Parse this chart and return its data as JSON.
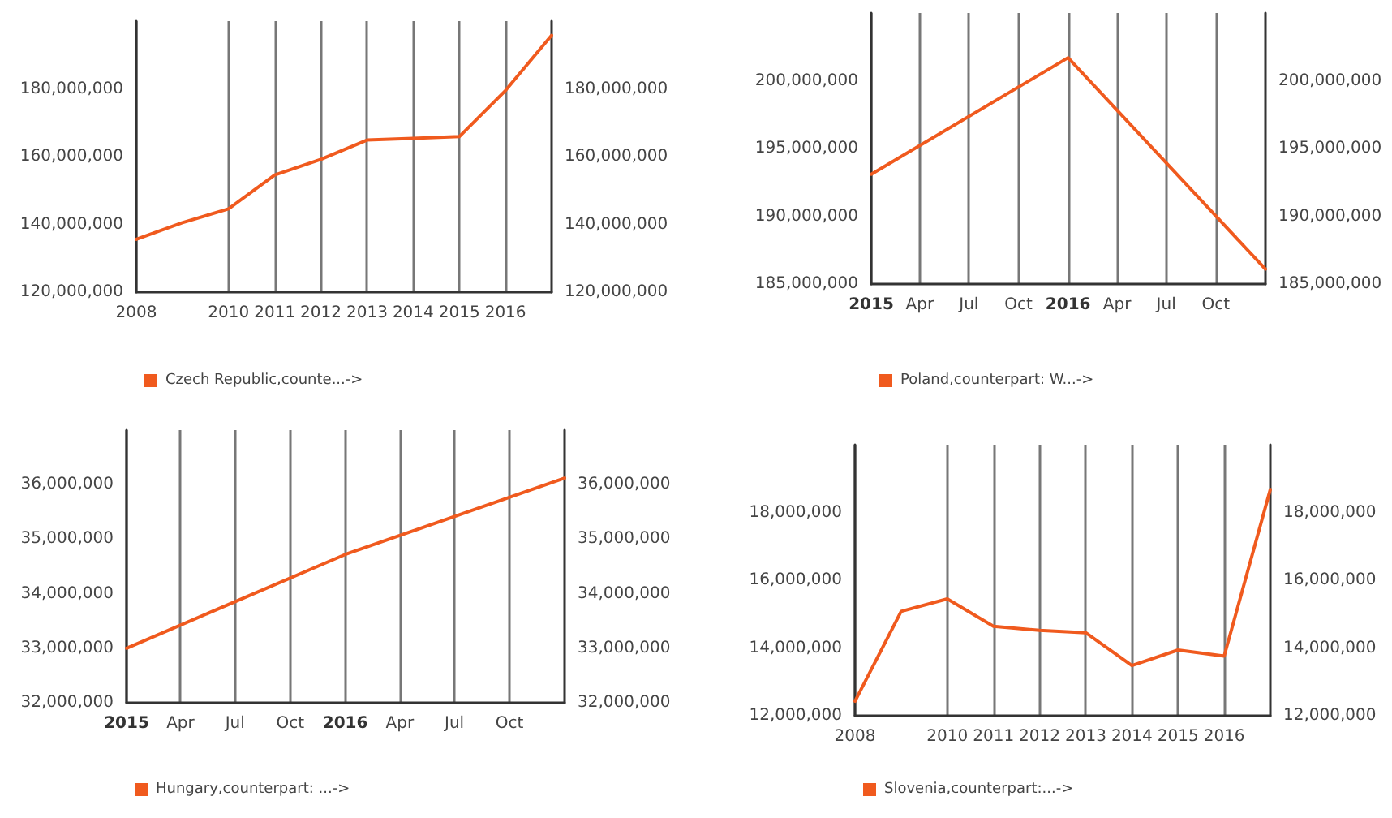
{
  "chart_data": [
    {
      "type": "line",
      "categories": [
        "2008",
        null,
        "2010",
        "2011",
        "2012",
        "2013",
        "2014",
        "2015",
        "2016",
        null
      ],
      "series": [
        {
          "name": "Czech Republic,counte...->",
          "color": "#f05a1e",
          "values": [
            135600000,
            140500000,
            144600000,
            154600000,
            159200000,
            164900000,
            165400000,
            165900000,
            179500000,
            195800000
          ]
        }
      ],
      "ylim": [
        120000000,
        200000000
      ],
      "yticks": [
        {
          "value": 120000000,
          "label": "120,000,000"
        },
        {
          "value": 140000000,
          "label": "140,000,000"
        },
        {
          "value": 160000000,
          "label": "160,000,000"
        },
        {
          "value": 180000000,
          "label": "180,000,000"
        }
      ],
      "y2lim": [
        120000000,
        200000000
      ],
      "y2ticks": [
        {
          "value": 120000000,
          "label": "120,000,000"
        },
        {
          "value": 140000000,
          "label": "140,000,000"
        },
        {
          "value": 160000000,
          "label": "160,000,000"
        },
        {
          "value": 180000000,
          "label": "180,000,000"
        }
      ],
      "grid": "x",
      "legend": "bottom left",
      "marker": "none"
    },
    {
      "type": "line",
      "x": [
        "2015-01",
        "2016-01",
        "2017-01"
      ],
      "series": [
        {
          "name": "Poland,counterpart: W...->",
          "color": "#f05a1e",
          "values": [
            193100000,
            201700000,
            186100000
          ]
        }
      ],
      "xlim": [
        "2015-01",
        "2017-01"
      ],
      "xticks": [
        {
          "value": "2015-01",
          "label": "2015"
        },
        {
          "value": "2015-04",
          "label": "Apr"
        },
        {
          "value": "2015-07",
          "label": "Jul"
        },
        {
          "value": "2015-10",
          "label": "Oct"
        },
        {
          "value": "2016-01",
          "label": "2016"
        },
        {
          "value": "2016-04",
          "label": "Apr"
        },
        {
          "value": "2016-07",
          "label": "Jul"
        },
        {
          "value": "2016-10",
          "label": "Oct"
        }
      ],
      "ylim": [
        185000000,
        205000000
      ],
      "yticks": [
        {
          "value": 185000000,
          "label": "185,000,000"
        },
        {
          "value": 190000000,
          "label": "190,000,000"
        },
        {
          "value": 195000000,
          "label": "195,000,000"
        },
        {
          "value": 200000000,
          "label": "200,000,000"
        }
      ],
      "y2lim": [
        185000000,
        205000000
      ],
      "y2ticks": [
        {
          "value": 185000000,
          "label": "185,000,000"
        },
        {
          "value": 190000000,
          "label": "190,000,000"
        },
        {
          "value": 195000000,
          "label": "195,000,000"
        },
        {
          "value": 200000000,
          "label": "200,000,000"
        }
      ],
      "grid": "x",
      "legend": "bottom left",
      "marker": "none"
    },
    {
      "type": "line",
      "x": [
        "2015-01",
        "2016-01",
        "2017-01"
      ],
      "series": [
        {
          "name": "Hungary,counterpart: ...->",
          "color": "#f05a1e",
          "values": [
            33000000,
            34720000,
            36120000
          ]
        }
      ],
      "xlim": [
        "2015-01",
        "2017-01"
      ],
      "xticks": [
        {
          "value": "2015-01",
          "label": "2015"
        },
        {
          "value": "2015-04",
          "label": "Apr"
        },
        {
          "value": "2015-07",
          "label": "Jul"
        },
        {
          "value": "2015-10",
          "label": "Oct"
        },
        {
          "value": "2016-01",
          "label": "2016"
        },
        {
          "value": "2016-04",
          "label": "Apr"
        },
        {
          "value": "2016-07",
          "label": "Jul"
        },
        {
          "value": "2016-10",
          "label": "Oct"
        }
      ],
      "ylim": [
        32000000,
        37000000
      ],
      "yticks": [
        {
          "value": 32000000,
          "label": "32,000,000"
        },
        {
          "value": 33000000,
          "label": "33,000,000"
        },
        {
          "value": 34000000,
          "label": "34,000,000"
        },
        {
          "value": 35000000,
          "label": "35,000,000"
        },
        {
          "value": 36000000,
          "label": "36,000,000"
        }
      ],
      "y2lim": [
        32000000,
        37000000
      ],
      "y2ticks": [
        {
          "value": 32000000,
          "label": "32,000,000"
        },
        {
          "value": 33000000,
          "label": "33,000,000"
        },
        {
          "value": 34000000,
          "label": "34,000,000"
        },
        {
          "value": 35000000,
          "label": "35,000,000"
        },
        {
          "value": 36000000,
          "label": "36,000,000"
        }
      ],
      "grid": "x",
      "legend": "bottom left",
      "marker": "none"
    },
    {
      "type": "line",
      "categories": [
        "2008",
        null,
        "2010",
        "2011",
        "2012",
        "2013",
        "2014",
        "2015",
        "2016",
        null
      ],
      "series": [
        {
          "name": "Slovenia,counterpart:...->",
          "color": "#f05a1e",
          "values": [
            12430000,
            15080000,
            15450000,
            14640000,
            14520000,
            14450000,
            13480000,
            13940000,
            13760000,
            18680000
          ]
        }
      ],
      "ylim": [
        12000000,
        20000000
      ],
      "yticks": [
        {
          "value": 12000000,
          "label": "12,000,000"
        },
        {
          "value": 14000000,
          "label": "14,000,000"
        },
        {
          "value": 16000000,
          "label": "16,000,000"
        },
        {
          "value": 18000000,
          "label": "18,000,000"
        }
      ],
      "y2lim": [
        12000000,
        20000000
      ],
      "y2ticks": [
        {
          "value": 12000000,
          "label": "12,000,000"
        },
        {
          "value": 14000000,
          "label": "14,000,000"
        },
        {
          "value": 16000000,
          "label": "16,000,000"
        },
        {
          "value": 18000000,
          "label": "18,000,000"
        }
      ],
      "grid": "x",
      "legend": "bottom left",
      "marker": "none"
    }
  ]
}
